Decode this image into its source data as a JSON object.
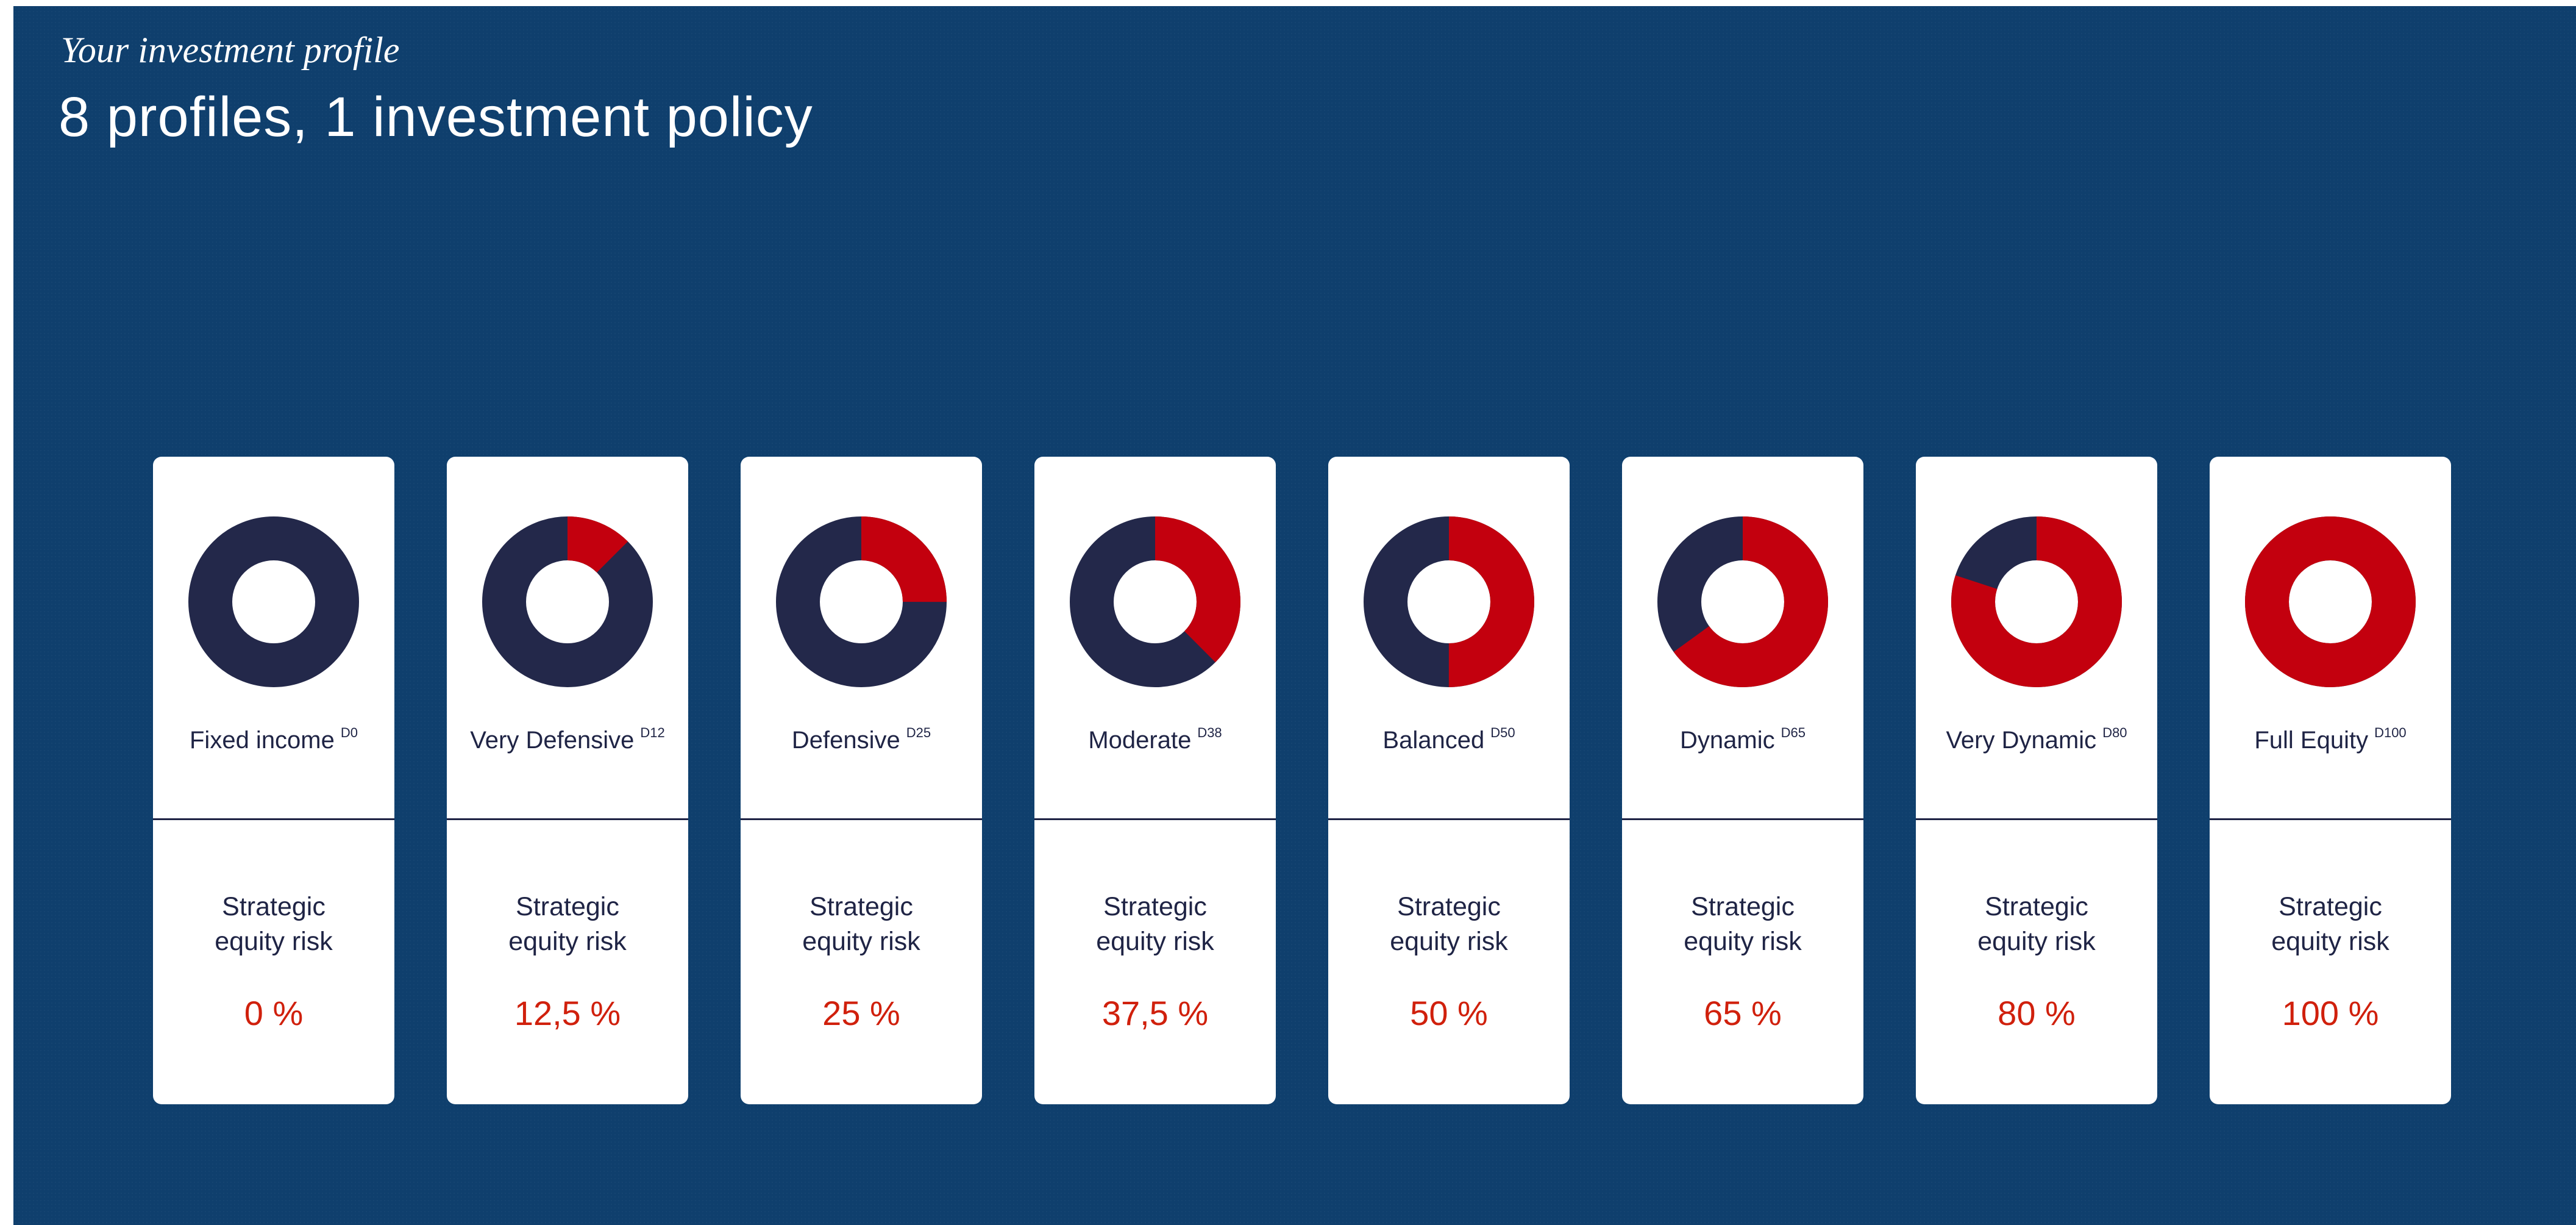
{
  "header": {
    "kicker": "Your investment profile",
    "title": "8 profiles, 1 investment policy"
  },
  "colors": {
    "equity": "#c3000e",
    "rest": "#23284a"
  },
  "profiles": [
    {
      "name": "Fixed income",
      "code": "D0",
      "label": "Strategic equity risk",
      "value": 0,
      "value_label": "0 %"
    },
    {
      "name": "Very Defensive",
      "code": "D12",
      "label": "Strategic equity risk",
      "value": 12.5,
      "value_label": "12,5 %"
    },
    {
      "name": "Defensive",
      "code": "D25",
      "label": "Strategic equity risk",
      "value": 25,
      "value_label": "25 %"
    },
    {
      "name": "Moderate",
      "code": "D38",
      "label": "Strategic equity risk",
      "value": 37.5,
      "value_label": "37,5 %"
    },
    {
      "name": "Balanced",
      "code": "D50",
      "label": "Strategic equity risk",
      "value": 50,
      "value_label": "50 %"
    },
    {
      "name": "Dynamic",
      "code": "D65",
      "label": "Strategic equity risk",
      "value": 65,
      "value_label": "65 %"
    },
    {
      "name": "Very Dynamic",
      "code": "D80",
      "label": "Strategic equity risk",
      "value": 80,
      "value_label": "80 %"
    },
    {
      "name": "Full Equity",
      "code": "D100",
      "label": "Strategic equity risk",
      "value": 100,
      "value_label": "100 %"
    }
  ]
}
